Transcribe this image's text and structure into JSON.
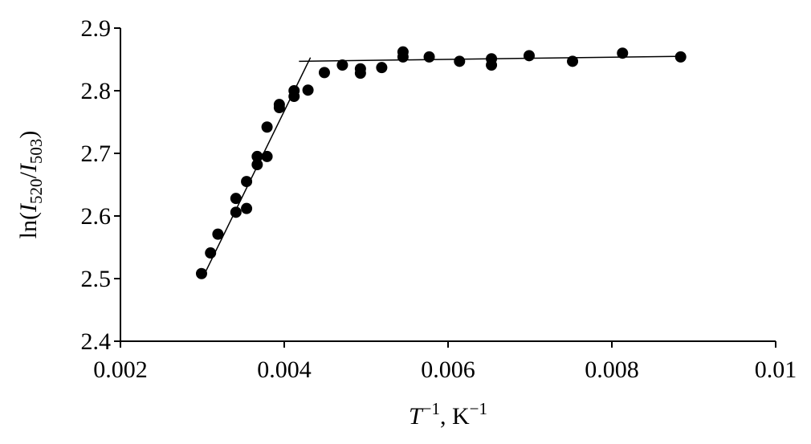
{
  "chart_data": {
    "type": "scatter",
    "ylabel_parts": [
      "ln(",
      "I",
      "520",
      "/",
      "I",
      "503",
      ")"
    ],
    "xlabel_parts": [
      "T",
      "−1",
      ", K",
      "−1"
    ],
    "color": "#000000",
    "x": [
      0.00299,
      0.0031,
      0.00319,
      0.00341,
      0.00341,
      0.00354,
      0.00354,
      0.00367,
      0.00367,
      0.00379,
      0.00379,
      0.00394,
      0.00394,
      0.00412,
      0.00412,
      0.00429,
      0.00449,
      0.00471,
      0.00493,
      0.00493,
      0.00519,
      0.00545,
      0.00545,
      0.00577,
      0.00614,
      0.00653,
      0.00653,
      0.00699,
      0.00752,
      0.00813,
      0.00884
    ],
    "y": [
      2.508,
      2.541,
      2.571,
      2.628,
      2.606,
      2.655,
      2.612,
      2.695,
      2.682,
      2.742,
      2.695,
      2.778,
      2.773,
      2.8,
      2.791,
      2.801,
      2.829,
      2.841,
      2.835,
      2.828,
      2.837,
      2.862,
      2.854,
      2.854,
      2.847,
      2.851,
      2.841,
      2.856,
      2.847,
      2.86,
      2.854
    ],
    "fit_lines": [
      {
        "x": [
          0.00301,
          0.00432
        ],
        "y": [
          2.503,
          2.853
        ]
      },
      {
        "x": [
          0.00418,
          0.00888
        ],
        "y": [
          2.847,
          2.855
        ]
      }
    ],
    "xlim": [
      0.002,
      0.01
    ],
    "xticks": [
      0.002,
      0.004,
      0.006,
      0.008,
      0.01
    ],
    "ylim": [
      2.4,
      2.9
    ],
    "yticks": [
      2.4,
      2.5,
      2.6,
      2.7,
      2.8,
      2.9
    ]
  }
}
